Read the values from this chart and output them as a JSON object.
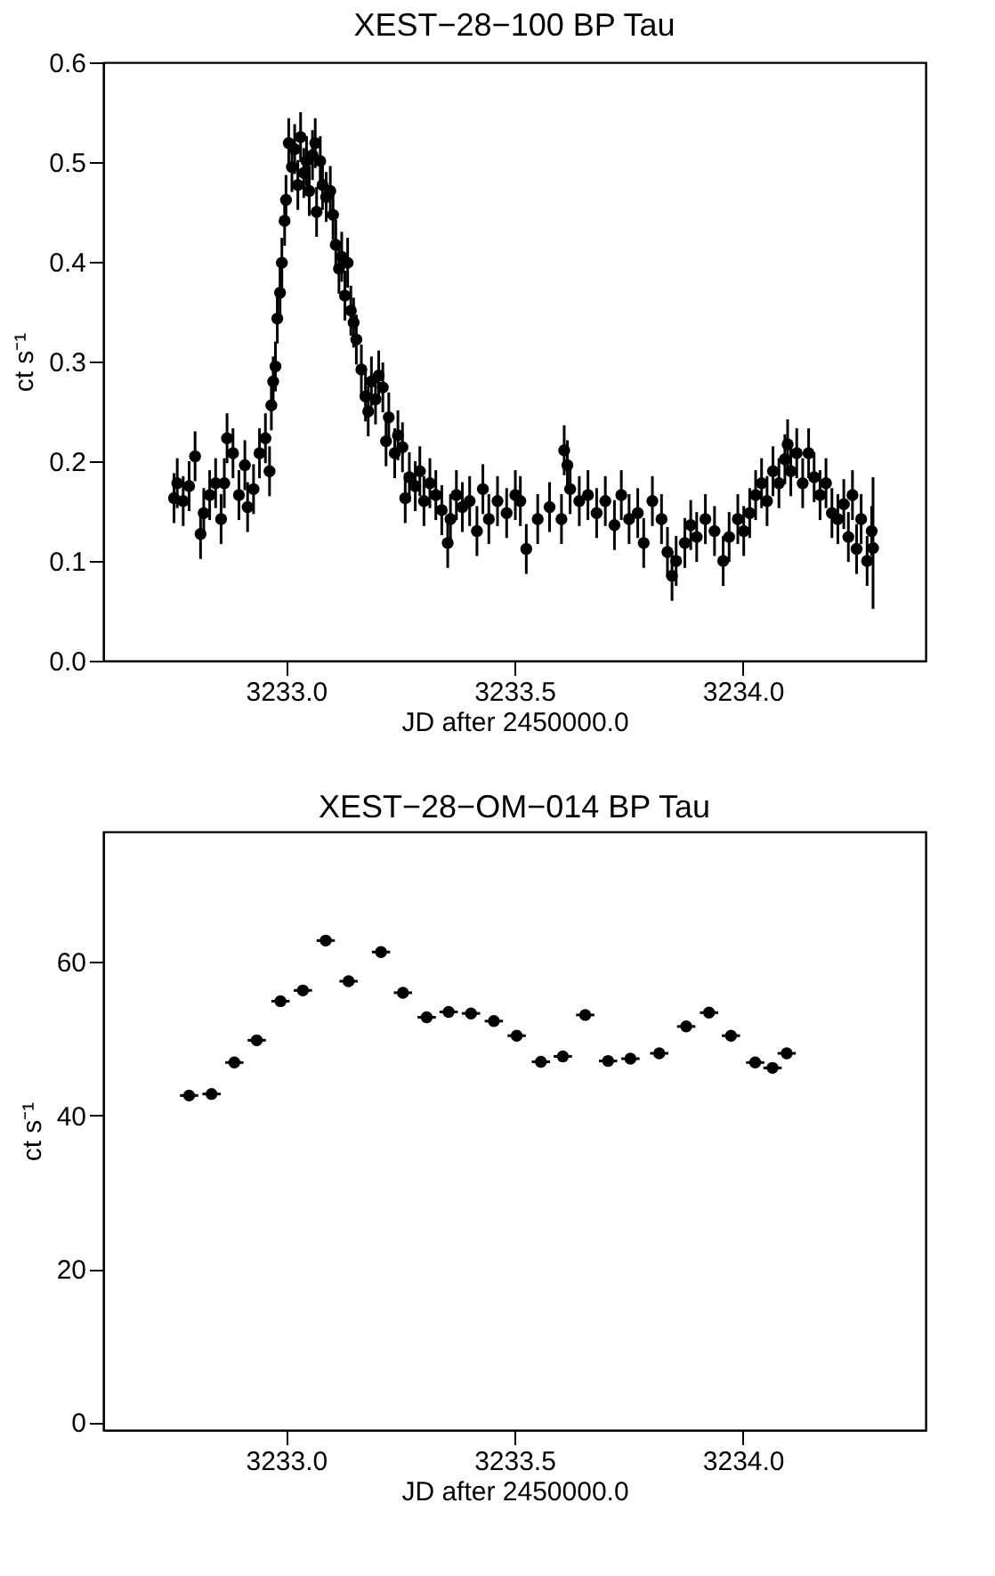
{
  "chart_data": [
    {
      "type": "scatter",
      "title": "XEST−28−100 BP Tau",
      "xlabel": "JD after 2450000.0",
      "ylabel": "ct s⁻¹",
      "marker": "circle",
      "xlim": [
        3232.6,
        3234.4
      ],
      "xticks": [
        {
          "value": 3233.0,
          "label": "3233.0"
        },
        {
          "value": 3233.5,
          "label": "3233.5"
        },
        {
          "value": 3234.0,
          "label": "3234.0"
        }
      ],
      "ylim": [
        0,
        0.6
      ],
      "yticks": [
        {
          "value": 0,
          "label": "0.0"
        },
        0.1,
        0.2,
        0.3,
        0.4,
        0.5,
        0.6
      ],
      "series": [
        {
          "color": "#000000",
          "x": [
            3232.755,
            3232.762,
            3232.775,
            3232.788,
            3232.801,
            3232.813,
            3232.82,
            3232.833,
            3232.846,
            3232.858,
            3232.865,
            3232.871,
            3232.884,
            3232.897,
            3232.91,
            3232.916,
            3232.929,
            3232.942,
            3232.955,
            3232.964,
            3232.968,
            3232.972,
            3232.977,
            3232.981,
            3232.987,
            3232.991,
            3232.997,
            3233.0,
            3233.006,
            3233.013,
            3233.019,
            3233.026,
            3233.032,
            3233.039,
            3233.045,
            3233.051,
            3233.058,
            3233.064,
            3233.067,
            3233.075,
            3233.08,
            3233.088,
            3233.097,
            3233.103,
            3233.109,
            3233.116,
            3233.122,
            3233.129,
            3233.135,
            3233.142,
            3233.148,
            3233.154,
            3233.165,
            3233.174,
            3233.18,
            3233.187,
            3233.196,
            3233.203,
            3233.212,
            3233.219,
            3233.225,
            3233.238,
            3233.245,
            3233.255,
            3233.261,
            3233.27,
            3233.283,
            3233.293,
            3233.302,
            3233.315,
            3233.328,
            3233.341,
            3233.354,
            3233.36,
            3233.373,
            3233.386,
            3233.402,
            3233.418,
            3233.431,
            3233.444,
            3233.463,
            3233.483,
            3233.502,
            3233.513,
            3233.526,
            3233.551,
            3233.577,
            3233.603,
            3233.609,
            3233.616,
            3233.622,
            3233.642,
            3233.661,
            3233.68,
            3233.699,
            3233.719,
            3233.734,
            3233.751,
            3233.77,
            3233.783,
            3233.802,
            3233.822,
            3233.835,
            3233.845,
            3233.854,
            3233.873,
            3233.886,
            3233.899,
            3233.918,
            3233.938,
            3233.957,
            3233.97,
            3233.989,
            3234.002,
            3234.015,
            3234.028,
            3234.041,
            3234.053,
            3234.066,
            3234.079,
            3234.092,
            3234.098,
            3234.105,
            3234.118,
            3234.131,
            3234.144,
            3234.156,
            3234.169,
            3234.182,
            3234.195,
            3234.208,
            3234.221,
            3234.231,
            3234.24,
            3234.249,
            3234.259,
            3234.272,
            3234.282,
            3234.285
          ],
          "values": [
            0.163,
            0.178,
            0.16,
            0.175,
            0.205,
            0.127,
            0.148,
            0.166,
            0.178,
            0.142,
            0.178,
            0.223,
            0.208,
            0.166,
            0.196,
            0.154,
            0.172,
            0.208,
            0.223,
            0.19,
            0.256,
            0.28,
            0.295,
            0.343,
            0.369,
            0.399,
            0.441,
            0.462,
            0.519,
            0.495,
            0.513,
            0.477,
            0.525,
            0.489,
            0.501,
            0.471,
            0.507,
            0.519,
            0.45,
            0.501,
            0.477,
            0.465,
            0.471,
            0.447,
            0.417,
            0.393,
            0.405,
            0.366,
            0.399,
            0.351,
            0.339,
            0.322,
            0.292,
            0.265,
            0.25,
            0.28,
            0.262,
            0.286,
            0.274,
            0.22,
            0.244,
            0.208,
            0.226,
            0.214,
            0.163,
            0.184,
            0.175,
            0.19,
            0.16,
            0.178,
            0.166,
            0.151,
            0.118,
            0.142,
            0.166,
            0.154,
            0.16,
            0.13,
            0.172,
            0.142,
            0.16,
            0.148,
            0.166,
            0.16,
            0.112,
            0.142,
            0.154,
            0.142,
            0.211,
            0.196,
            0.172,
            0.16,
            0.166,
            0.148,
            0.16,
            0.136,
            0.166,
            0.142,
            0.148,
            0.118,
            0.16,
            0.142,
            0.109,
            0.085,
            0.1,
            0.118,
            0.136,
            0.124,
            0.142,
            0.13,
            0.1,
            0.124,
            0.142,
            0.13,
            0.148,
            0.166,
            0.178,
            0.16,
            0.19,
            0.178,
            0.202,
            0.217,
            0.19,
            0.208,
            0.178,
            0.208,
            0.184,
            0.166,
            0.178,
            0.148,
            0.142,
            0.157,
            0.124,
            0.166,
            0.112,
            0.142,
            0.1,
            0.13,
            0.113
          ],
          "errors": [
            0.025,
            0.025,
            0.025,
            0.025,
            0.025,
            0.025,
            0.025,
            0.025,
            0.025,
            0.025,
            0.025,
            0.025,
            0.025,
            0.025,
            0.025,
            0.025,
            0.025,
            0.025,
            0.025,
            0.025,
            0.025,
            0.025,
            0.025,
            0.025,
            0.025,
            0.025,
            0.025,
            0.025,
            0.025,
            0.025,
            0.025,
            0.025,
            0.025,
            0.025,
            0.025,
            0.025,
            0.025,
            0.025,
            0.025,
            0.025,
            0.025,
            0.025,
            0.025,
            0.025,
            0.025,
            0.025,
            0.025,
            0.025,
            0.025,
            0.025,
            0.025,
            0.025,
            0.025,
            0.025,
            0.025,
            0.025,
            0.025,
            0.025,
            0.025,
            0.025,
            0.025,
            0.025,
            0.025,
            0.025,
            0.025,
            0.025,
            0.025,
            0.025,
            0.025,
            0.025,
            0.025,
            0.025,
            0.025,
            0.025,
            0.025,
            0.025,
            0.025,
            0.025,
            0.025,
            0.025,
            0.025,
            0.025,
            0.025,
            0.025,
            0.025,
            0.025,
            0.025,
            0.025,
            0.025,
            0.025,
            0.025,
            0.025,
            0.025,
            0.025,
            0.025,
            0.025,
            0.025,
            0.025,
            0.025,
            0.025,
            0.025,
            0.025,
            0.025,
            0.025,
            0.025,
            0.025,
            0.025,
            0.025,
            0.025,
            0.025,
            0.025,
            0.025,
            0.025,
            0.025,
            0.025,
            0.025,
            0.025,
            0.025,
            0.025,
            0.025,
            0.025,
            0.025,
            0.025,
            0.025,
            0.025,
            0.025,
            0.025,
            0.025,
            0.025,
            0.025,
            0.025,
            0.025,
            0.025,
            0.025,
            0.025,
            0.025,
            0.025,
            0.025,
            [
              0.052,
              0.184
            ]
          ]
        }
      ]
    },
    {
      "type": "scatter",
      "title": "XEST−28−OM−014 BP Tau",
      "xlabel": "JD after 2450000.0",
      "ylabel": "ct s⁻¹",
      "marker": "circle",
      "xlim": [
        3232.6,
        3234.4
      ],
      "xticks": [
        {
          "value": 3233.0,
          "label": "3233.0"
        },
        {
          "value": 3233.5,
          "label": "3233.5"
        },
        {
          "value": 3234.0,
          "label": "3234.0"
        }
      ],
      "ylim": [
        -1,
        77
      ],
      "yticks": [
        0,
        20,
        40,
        60
      ],
      "series": [
        {
          "color": "#000000",
          "x": [
            3232.788,
            3232.837,
            3232.887,
            3232.936,
            3232.988,
            3233.037,
            3233.087,
            3233.137,
            3233.208,
            3233.256,
            3233.308,
            3233.356,
            3233.405,
            3233.455,
            3233.505,
            3233.558,
            3233.606,
            3233.655,
            3233.705,
            3233.754,
            3233.817,
            3233.876,
            3233.926,
            3233.974,
            3234.027,
            3234.065,
            3234.096
          ],
          "values": [
            42.6,
            42.8,
            46.9,
            49.8,
            54.9,
            56.3,
            62.8,
            57.5,
            61.3,
            56.0,
            52.8,
            53.5,
            53.3,
            52.3,
            50.4,
            47.0,
            47.7,
            53.1,
            47.1,
            47.4,
            48.1,
            51.6,
            53.4,
            50.4,
            46.9,
            46.2,
            48.1
          ],
          "xerrors": [
            0.02,
            0.02,
            0.02,
            0.02,
            0.02,
            0.02,
            0.02,
            0.02,
            0.02,
            0.02,
            0.02,
            0.02,
            0.02,
            0.02,
            0.02,
            0.02,
            0.02,
            0.02,
            0.02,
            0.02,
            0.02,
            0.02,
            0.02,
            0.02,
            0.02,
            0.02,
            0.02
          ]
        }
      ]
    }
  ]
}
